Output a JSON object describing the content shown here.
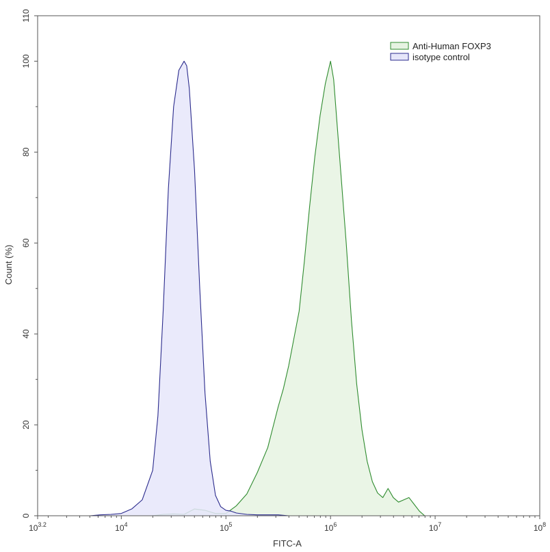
{
  "chart_data": {
    "type": "area",
    "xlabel": "FITC-A",
    "ylabel": "Count (%)",
    "x_scale": "log10",
    "xlim": [
      1584.89,
      100000000
    ],
    "ylim": [
      0,
      110
    ],
    "x_tick_labels": [
      {
        "value": 1584.89,
        "base": "10",
        "exp": "3.2"
      },
      {
        "value": 10000,
        "base": "10",
        "exp": "4"
      },
      {
        "value": 100000,
        "base": "10",
        "exp": "5"
      },
      {
        "value": 1000000,
        "base": "10",
        "exp": "6"
      },
      {
        "value": 10000000,
        "base": "10",
        "exp": "7"
      },
      {
        "value": 100000000,
        "base": "10",
        "exp": "8"
      }
    ],
    "y_ticks": [
      "0",
      "20",
      "40",
      "60",
      "80",
      "100",
      "110"
    ],
    "grid": false,
    "legend_position": "top-right",
    "series": [
      {
        "name": "Anti-Human FOXP3",
        "stroke": "#2e8b2e",
        "fill": "#e6f3e2",
        "points": [
          [
            19953,
            0
          ],
          [
            25119,
            0.3
          ],
          [
            31623,
            0.4
          ],
          [
            39811,
            0.3
          ],
          [
            50119,
            1.5
          ],
          [
            63096,
            1.2
          ],
          [
            79433,
            0.5
          ],
          [
            100000,
            0.5
          ],
          [
            125893,
            2.2
          ],
          [
            158489,
            4.8
          ],
          [
            199526,
            9.5
          ],
          [
            251189,
            15
          ],
          [
            316228,
            24
          ],
          [
            354813,
            28
          ],
          [
            398107,
            33
          ],
          [
            446684,
            39
          ],
          [
            501187,
            45
          ],
          [
            562341,
            56
          ],
          [
            630957,
            68
          ],
          [
            707946,
            79
          ],
          [
            794328,
            88
          ],
          [
            891251,
            95
          ],
          [
            1000000,
            100
          ],
          [
            1071519,
            96
          ],
          [
            1122018,
            90
          ],
          [
            1258925,
            75
          ],
          [
            1412538,
            60
          ],
          [
            1584893,
            43
          ],
          [
            1778279,
            29
          ],
          [
            1995262,
            19
          ],
          [
            2238721,
            12
          ],
          [
            2511886,
            7.5
          ],
          [
            2818383,
            5
          ],
          [
            3162278,
            4
          ],
          [
            3548134,
            6
          ],
          [
            3981072,
            4
          ],
          [
            4466836,
            3
          ],
          [
            5011872,
            3.5
          ],
          [
            5623413,
            4
          ],
          [
            6309573,
            2.5
          ],
          [
            7079458,
            1
          ],
          [
            7943282,
            0
          ]
        ]
      },
      {
        "name": "isotype control",
        "stroke": "#2a2a8c",
        "fill": "#e6e6fa",
        "points": [
          [
            5011.87,
            0
          ],
          [
            6309.57,
            0.2
          ],
          [
            7943.28,
            0.3
          ],
          [
            10000,
            0.5
          ],
          [
            12589,
            1.5
          ],
          [
            15849,
            3.5
          ],
          [
            19953,
            10
          ],
          [
            22387,
            22
          ],
          [
            25119,
            45
          ],
          [
            28184,
            72
          ],
          [
            31623,
            90
          ],
          [
            35481,
            98
          ],
          [
            39811,
            100
          ],
          [
            42170,
            99
          ],
          [
            44668,
            94
          ],
          [
            50119,
            76
          ],
          [
            56234,
            50
          ],
          [
            63096,
            27
          ],
          [
            70795,
            12
          ],
          [
            79433,
            4.5
          ],
          [
            89125,
            2
          ],
          [
            100000,
            1.2
          ],
          [
            112202,
            1
          ],
          [
            125893,
            0.6
          ],
          [
            158489,
            0.3
          ],
          [
            199526,
            0.2
          ],
          [
            316228,
            0.2
          ],
          [
            398107,
            0
          ]
        ]
      }
    ]
  },
  "colors": {
    "axis": "#555555",
    "text": "#333333"
  }
}
